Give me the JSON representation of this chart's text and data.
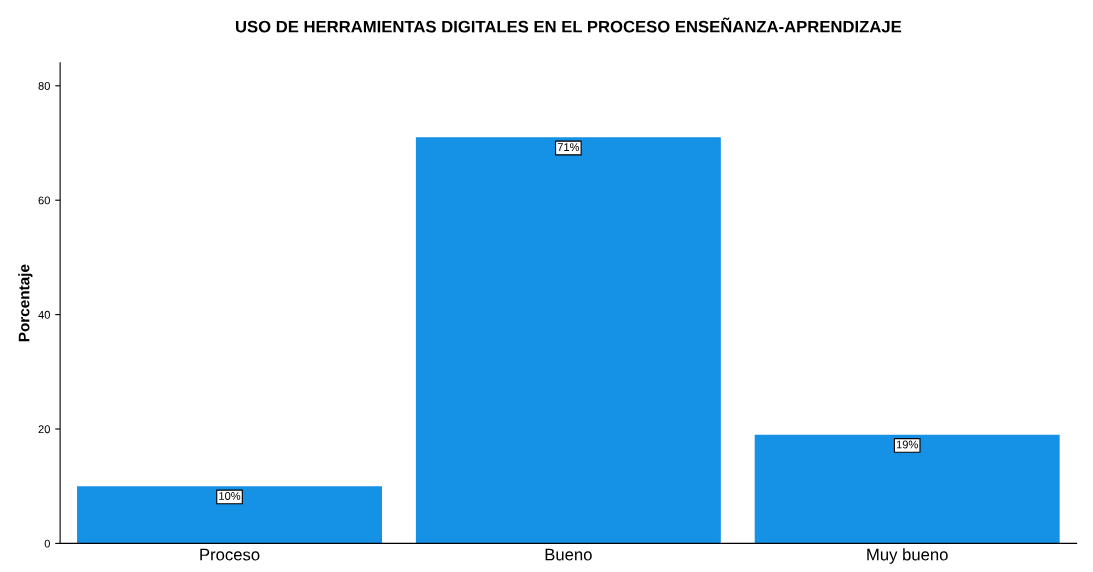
{
  "chart_data": {
    "type": "bar",
    "title": "USO DE HERRAMIENTAS DIGITALES EN EL PROCESO ENSEÑANZA-APRENDIZAJE",
    "ylabel": "Porcentaje",
    "categories": [
      "Proceso",
      "Bueno",
      "Muy bueno"
    ],
    "values": [
      10,
      71,
      19
    ],
    "value_labels": [
      "10%",
      "71%",
      "19%"
    ],
    "color": "#1591e6",
    "ylim": [
      0,
      84
    ],
    "yticks": [
      0,
      20,
      40,
      60,
      80
    ],
    "grid": false
  }
}
